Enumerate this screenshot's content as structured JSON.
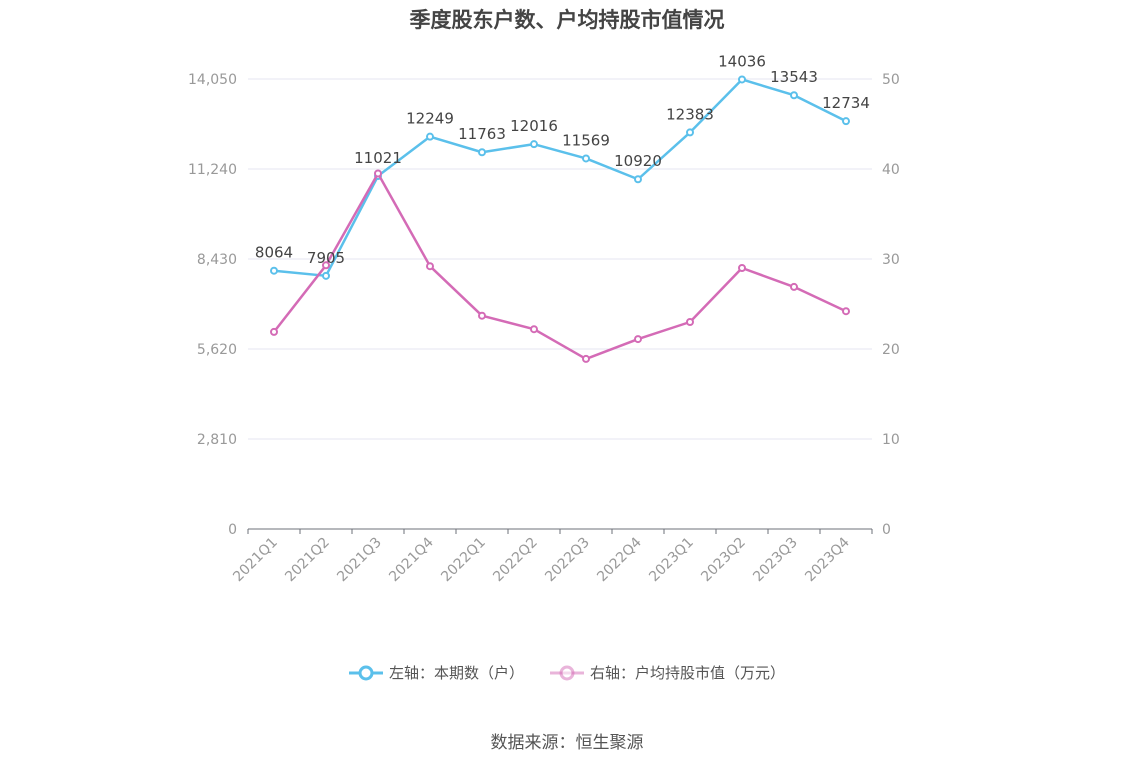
{
  "title": "季度股东户数、户均持股市值情况",
  "source": "数据来源：恒生聚源",
  "colors": {
    "left_series": "#5bc0eb",
    "right_series": "#d46bb6",
    "grid": "#e4e6f2",
    "axis_text": "#999999",
    "label_text": "#444444"
  },
  "legend": [
    {
      "label": "左轴：本期数（户）"
    },
    {
      "label": "右轴：户均持股市值（万元）"
    }
  ],
  "chart_data": {
    "type": "line",
    "title": "季度股东户数、户均持股市值情况",
    "categories": [
      "2021Q1",
      "2021Q2",
      "2021Q3",
      "2021Q4",
      "2022Q1",
      "2022Q2",
      "2022Q3",
      "2022Q4",
      "2023Q1",
      "2023Q2",
      "2023Q3",
      "2023Q4"
    ],
    "left_axis": {
      "ticks": [
        "0",
        "2,810",
        "5,620",
        "8,430",
        "11,240",
        "14,050"
      ],
      "ylim": [
        0,
        14050
      ]
    },
    "right_axis": {
      "ticks": [
        "0",
        "10",
        "20",
        "30",
        "40",
        "50"
      ],
      "ylim": [
        0,
        50
      ]
    },
    "grid": true,
    "legend_position": "bottom",
    "series": [
      {
        "name": "左轴：本期数（户）",
        "axis": "left",
        "values": [
          8064,
          7905,
          11021,
          12249,
          11763,
          12016,
          11569,
          10920,
          12383,
          14036,
          13543,
          12734
        ],
        "labels": [
          "8064",
          "7905",
          "11021",
          "12249",
          "11763",
          "12016",
          "11569",
          "10920",
          "12383",
          "14036",
          "13543",
          "12734"
        ]
      },
      {
        "name": "右轴：户均持股市值（万元）",
        "axis": "right",
        "values": [
          21.9,
          29.3,
          39.5,
          29.2,
          23.7,
          22.2,
          18.9,
          21.1,
          23.0,
          29.0,
          26.9,
          24.2
        ]
      }
    ]
  }
}
